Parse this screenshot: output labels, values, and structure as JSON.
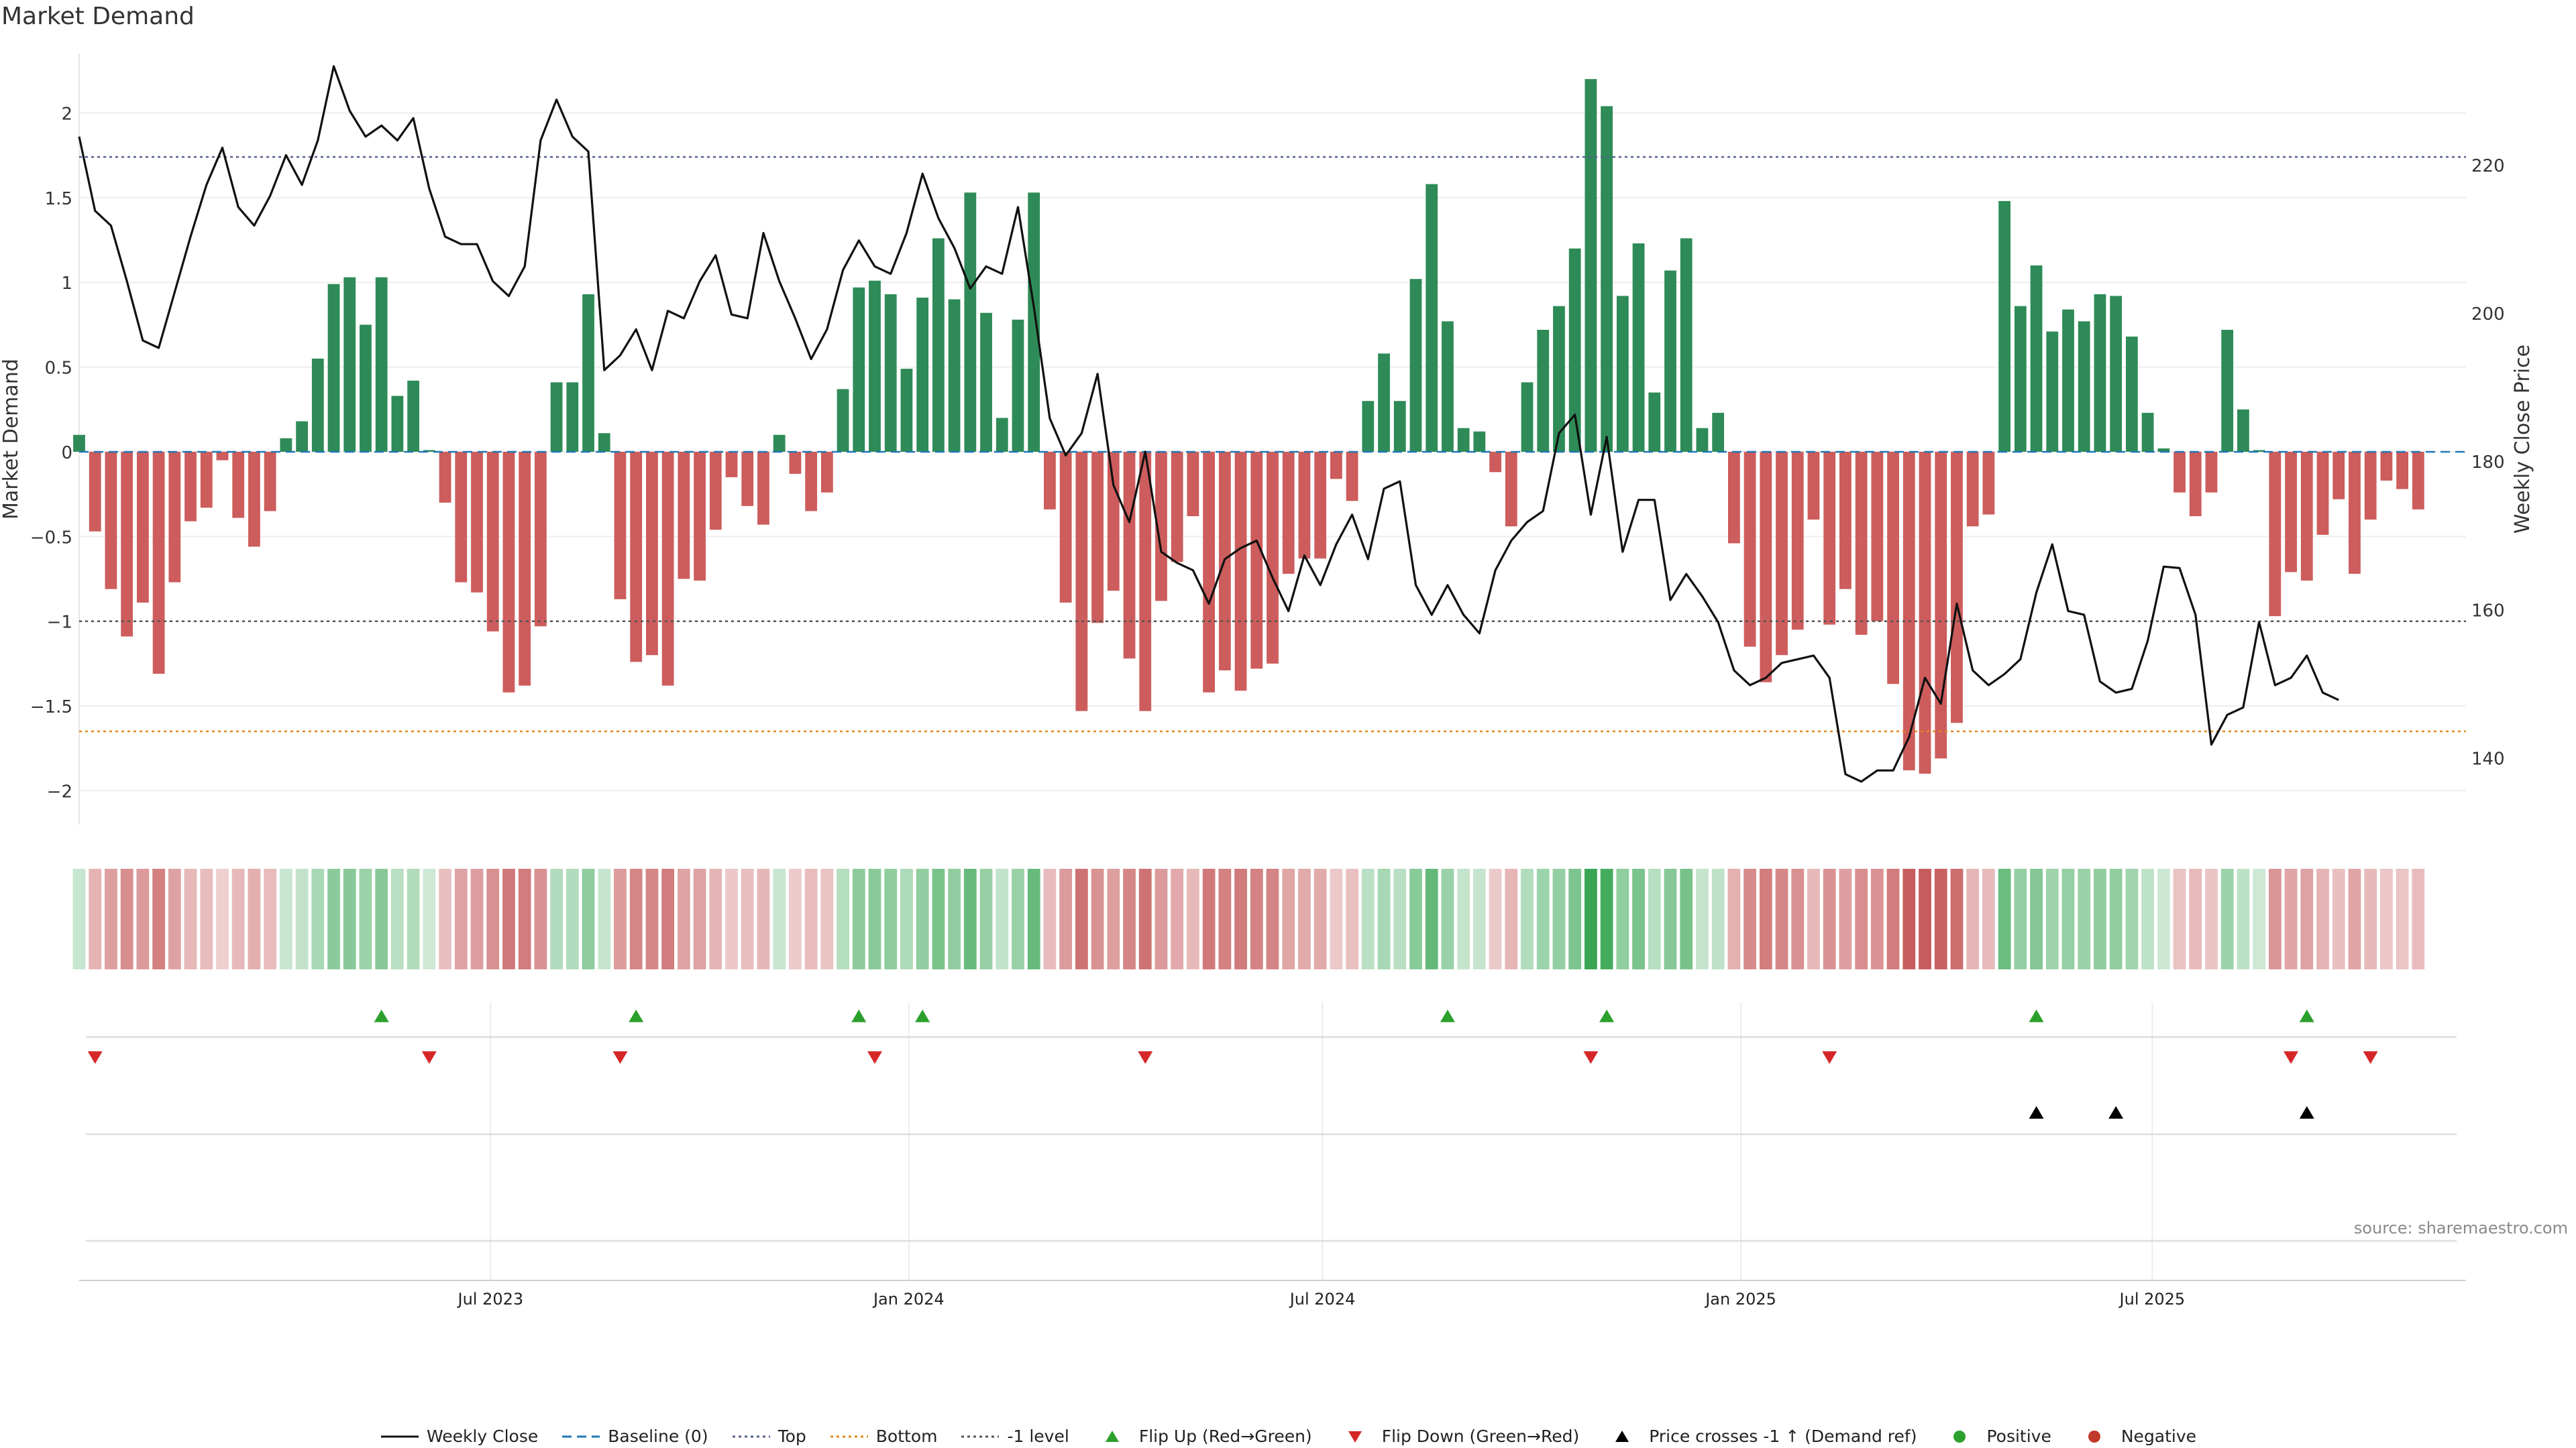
{
  "title": "Market Demand",
  "source_text": "source: sharemaestro.com",
  "colors": {
    "positive": "#2e8b57",
    "negative": "#cd5c5c",
    "close": "#111111",
    "top_line": "#55608f",
    "bottom_line": "#e08a1e",
    "minus1_line": "#555555",
    "baseline": "#1f77b4",
    "flip_up": "#2ca02c",
    "flip_down": "#d62728",
    "cross": "#000000",
    "pos_dot": "#2ca02c",
    "neg_dot": "#c0392b"
  },
  "chart_data": {
    "type": "bar",
    "title": "Market Demand",
    "ylabel": "Market Demand",
    "y2label": "Weekly Close Price",
    "ylim": [
      -2.2,
      2.35
    ],
    "y2lim": [
      131,
      235
    ],
    "yticks": [
      2,
      1.5,
      1,
      0.5,
      0,
      -0.5,
      -1,
      -1.5,
      -2
    ],
    "ytick_labels": [
      "2",
      "1.5",
      "1",
      "0.5",
      "0",
      "−0.5",
      "−1",
      "−1.5",
      "−2"
    ],
    "y2ticks": [
      220,
      200,
      180,
      160,
      140
    ],
    "xlim": [
      "2023-01-01",
      "2025-11-16"
    ],
    "xticks": [
      "2023-07-01",
      "2024-01-01",
      "2024-07-01",
      "2025-01-01",
      "2025-07-01"
    ],
    "xtick_labels": [
      "Jul 2023",
      "Jan 2024",
      "Jul 2024",
      "Jan 2025",
      "Jul 2025"
    ],
    "levels": {
      "top": 1.74,
      "bottom": -1.65,
      "minus_one": -1.0,
      "baseline": 0
    },
    "grid": true,
    "legend_position": "bottom-center",
    "start": "2023-01-01",
    "step_days": 7,
    "demand": [
      0.1,
      -0.47,
      -0.81,
      -1.09,
      -0.89,
      -1.31,
      -0.77,
      -0.41,
      -0.33,
      -0.05,
      -0.39,
      -0.56,
      -0.35,
      0.08,
      0.18,
      0.55,
      0.99,
      1.03,
      0.75,
      1.03,
      0.33,
      0.42,
      0.01,
      -0.3,
      -0.77,
      -0.83,
      -1.06,
      -1.42,
      -1.38,
      -1.03,
      0.41,
      0.41,
      0.93,
      0.11,
      -0.87,
      -1.24,
      -1.2,
      -1.38,
      -0.75,
      -0.76,
      -0.46,
      -0.15,
      -0.32,
      -0.43,
      0.1,
      -0.13,
      -0.35,
      -0.24,
      0.37,
      0.97,
      1.01,
      0.93,
      0.49,
      0.91,
      1.26,
      0.9,
      1.53,
      0.82,
      0.2,
      0.78,
      1.53,
      -0.34,
      -0.89,
      -1.53,
      -1.01,
      -0.82,
      -1.22,
      -1.53,
      -0.88,
      -0.65,
      -0.38,
      -1.42,
      -1.29,
      -1.41,
      -1.28,
      -1.25,
      -0.72,
      -0.63,
      -0.63,
      -0.16,
      -0.29,
      0.3,
      0.58,
      0.3,
      1.02,
      1.58,
      0.77,
      0.14,
      0.12,
      -0.12,
      -0.44,
      0.41,
      0.72,
      0.86,
      1.2,
      2.2,
      2.04,
      0.92,
      1.23,
      0.35,
      1.07,
      1.26,
      0.14,
      0.23,
      -0.54,
      -1.15,
      -1.36,
      -1.2,
      -1.05,
      -0.4,
      -1.02,
      -0.81,
      -1.08,
      -1.0,
      -1.37,
      -1.88,
      -1.9,
      -1.81,
      -1.6,
      -0.44,
      -0.37,
      1.48,
      0.86,
      1.1,
      0.71,
      0.84,
      0.77,
      0.93,
      0.92,
      0.68,
      0.23,
      0.02,
      -0.24,
      -0.38,
      -0.24,
      0.72,
      0.25,
      0.01,
      -0.97,
      -0.71,
      -0.76,
      -0.49,
      -0.28,
      -0.72,
      -0.4,
      -0.17,
      -0.22,
      -0.34
    ],
    "close": [
      223.8,
      213.8,
      211.8,
      204.3,
      196.3,
      195.3,
      202.8,
      210.3,
      217.3,
      222.3,
      214.3,
      211.8,
      215.8,
      221.3,
      217.3,
      223.3,
      233.3,
      227.3,
      223.8,
      225.3,
      223.3,
      226.3,
      216.8,
      210.3,
      209.3,
      209.3,
      204.3,
      202.3,
      206.3,
      223.3,
      228.8,
      223.8,
      221.8,
      192.3,
      194.3,
      197.8,
      192.3,
      200.3,
      199.3,
      204.3,
      207.8,
      199.8,
      199.3,
      210.8,
      204.3,
      199.3,
      193.8,
      197.8,
      205.8,
      209.8,
      206.3,
      205.3,
      210.8,
      218.8,
      212.8,
      208.8,
      203.3,
      206.3,
      205.3,
      214.3,
      200.8,
      185.8,
      180.8,
      183.8,
      191.8,
      176.8,
      171.8,
      181.3,
      167.8,
      166.3,
      165.3,
      160.8,
      166.8,
      168.3,
      169.3,
      164.3,
      159.8,
      167.3,
      163.3,
      168.8,
      172.8,
      166.8,
      176.3,
      177.3,
      163.3,
      159.3,
      163.3,
      159.3,
      156.8,
      165.3,
      169.3,
      171.8,
      173.3,
      183.8,
      186.3,
      172.8,
      183.3,
      167.8,
      174.8,
      174.8,
      161.3,
      164.8,
      161.8,
      158.3,
      151.8,
      149.8,
      150.8,
      152.8,
      153.3,
      153.8,
      150.8,
      137.8,
      136.8,
      138.3,
      138.3,
      142.8,
      150.8,
      147.3,
      160.8,
      151.8,
      149.8,
      151.3,
      153.3,
      162.3,
      168.8,
      159.8,
      159.3,
      150.3,
      148.8,
      149.3,
      155.8,
      165.8,
      165.6,
      159.3,
      141.8,
      145.8,
      146.8,
      158.3,
      149.8,
      150.8,
      153.8,
      148.8,
      147.8
    ],
    "flip_up": [
      "2023-05-14",
      "2023-09-03",
      "2023-12-10",
      "2024-01-07",
      "2024-08-25",
      "2024-11-03",
      "2025-05-11",
      "2025-09-07"
    ],
    "flip_down": [
      "2023-01-08",
      "2023-06-04",
      "2023-08-27",
      "2023-12-17",
      "2024-04-14",
      "2024-10-27",
      "2025-02-09",
      "2025-08-31",
      "2025-10-05"
    ],
    "price_cross_up": [
      "2025-05-11",
      "2025-06-15",
      "2025-09-07"
    ]
  },
  "legend": [
    {
      "label": "Weekly Close",
      "symbol": "line",
      "color": "#111111",
      "dash": ""
    },
    {
      "label": "Baseline (0)",
      "symbol": "line",
      "color": "#1f77b4",
      "dash": "14,8"
    },
    {
      "label": "Top",
      "symbol": "line",
      "color": "#55608f",
      "dash": "4,5"
    },
    {
      "label": "Bottom",
      "symbol": "line",
      "color": "#e08a1e",
      "dash": "4,5"
    },
    {
      "label": "-1 level",
      "symbol": "line",
      "color": "#555555",
      "dash": "4,5"
    },
    {
      "label": "Flip Up (Red→Green)",
      "symbol": "tri-up",
      "color": "#2ca02c"
    },
    {
      "label": "Flip Down (Green→Red)",
      "symbol": "tri-down",
      "color": "#d62728"
    },
    {
      "label": "Price crosses -1 ↑ (Demand ref)",
      "symbol": "tri-up",
      "color": "#000000"
    },
    {
      "label": "Positive",
      "symbol": "dot",
      "color": "#2ca02c"
    },
    {
      "label": "Negative",
      "symbol": "dot",
      "color": "#c0392b"
    }
  ]
}
